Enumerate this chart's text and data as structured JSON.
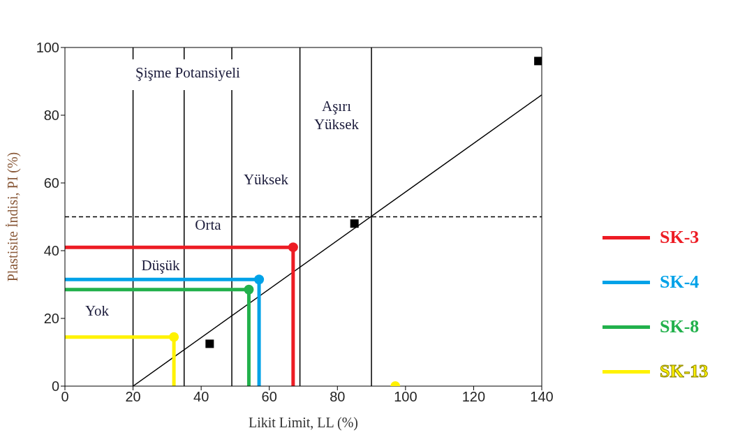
{
  "chart_data": {
    "type": "line",
    "xlabel": "Likit Limit, LL (%)",
    "ylabel": "Plastisite İndisi, PI (%)",
    "xlim": [
      0,
      140
    ],
    "ylim": [
      0,
      100
    ],
    "xticks": [
      0,
      20,
      40,
      60,
      80,
      100,
      120,
      140
    ],
    "yticks": [
      0,
      20,
      40,
      60,
      80,
      100
    ],
    "legend": "right",
    "line_style": "solid",
    "series": [
      {
        "color": "#000000",
        "x": [
          20,
          140
        ],
        "values": [
          0,
          86
        ]
      },
      {
        "type": "scatter",
        "marker": "square",
        "color": "#000000",
        "x": [
          42.5,
          85,
          139
        ],
        "values": [
          12.5,
          48,
          96
        ]
      },
      {
        "type": "scatter",
        "marker": "circle",
        "color": "#fff200",
        "x": [
          97
        ],
        "values": [
          0
        ]
      },
      {
        "name": "SK-3",
        "color": "#ed1c24",
        "x": [
          0,
          67,
          67
        ],
        "values": [
          41,
          41,
          0
        ]
      },
      {
        "name": "SK-4",
        "color": "#00a2e8",
        "x": [
          0,
          57,
          57
        ],
        "values": [
          31.5,
          31.5,
          0
        ]
      },
      {
        "name": "SK-8",
        "color": "#22b14c",
        "x": [
          0,
          54,
          54
        ],
        "values": [
          28.5,
          28.5,
          0
        ]
      },
      {
        "name": "SK-13",
        "color": "#fff200",
        "x": [
          0,
          32,
          32
        ],
        "values": [
          14.5,
          14.5,
          0
        ]
      },
      {
        "type": "scatter",
        "marker": "circle",
        "color": "#ed1c24",
        "x": [
          67
        ],
        "values": [
          41
        ]
      },
      {
        "type": "scatter",
        "marker": "circle",
        "color": "#00a2e8",
        "x": [
          57
        ],
        "values": [
          31.5
        ]
      },
      {
        "type": "scatter",
        "marker": "circle",
        "color": "#22b14c",
        "x": [
          54
        ],
        "values": [
          28.5
        ]
      },
      {
        "type": "scatter",
        "marker": "circle",
        "color": "#fff200",
        "x": [
          32
        ],
        "values": [
          14.5
        ]
      }
    ],
    "ref_lines": [
      {
        "axis": "y",
        "value": 50,
        "line_style": "dashed",
        "color": "#000000"
      },
      {
        "axis": "x",
        "value": 20,
        "color": "#000000"
      },
      {
        "axis": "x",
        "value": 35,
        "color": "#000000"
      },
      {
        "axis": "x",
        "value": 49,
        "color": "#000000"
      },
      {
        "axis": "x",
        "value": 69,
        "color": "#000000"
      },
      {
        "axis": "x",
        "value": 90,
        "color": "#000000"
      }
    ],
    "annotations": [
      "Şişme Potansiyeli",
      "Yok",
      "Düşük",
      "Orta",
      "Yüksek",
      "Aşırı\nYüksek"
    ]
  }
}
